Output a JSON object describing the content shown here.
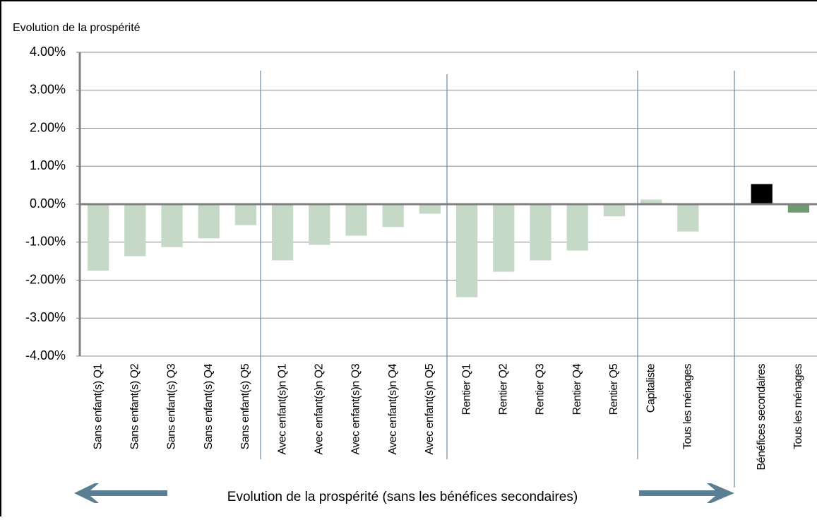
{
  "chart_data": {
    "type": "bar",
    "title": "Evolution de la prospérité",
    "annotation": "Evolution de la prospérité (sans les bénéfices secondaires)",
    "categories": [
      "Sans enfant(s) Q1",
      "Sans enfant(s) Q2",
      "Sans enfant(s) Q3",
      "Sans enfant(s) Q4",
      "Sans enfant(s) Q5",
      "Avec enfant(s)n Q1",
      "Avec enfant(s)n Q2",
      "Avec enfant(s)n Q3",
      "Avec enfant(s)n Q4",
      "Avec enfant(s)n Q5",
      "Rentier Q1",
      "Rentier Q2",
      "Rentier Q3",
      "Rentier Q4",
      "Rentier Q5",
      "Capitaliste",
      "Tous les ménages",
      null,
      "Bénéfices secondaires",
      "Tous les ménages"
    ],
    "values": [
      -1.75,
      -1.37,
      -1.13,
      -0.9,
      -0.55,
      -1.48,
      -1.07,
      -0.83,
      -0.6,
      -0.25,
      -2.45,
      -1.78,
      -1.48,
      -1.22,
      -0.32,
      0.12,
      -0.72,
      null,
      0.53,
      -0.22
    ],
    "colors": [
      "#c6d9c7",
      "#c6d9c7",
      "#c6d9c7",
      "#c6d9c7",
      "#c6d9c7",
      "#c6d9c7",
      "#c6d9c7",
      "#c6d9c7",
      "#c6d9c7",
      "#c6d9c7",
      "#c6d9c7",
      "#c6d9c7",
      "#c6d9c7",
      "#c6d9c7",
      "#c6d9c7",
      "#c6d9c7",
      "#c6d9c7",
      "#c6d9c7",
      "#000000",
      "#6f9a6f"
    ],
    "ylim": [
      -4,
      4
    ],
    "yticks": [
      {
        "value": 4,
        "label": "4.00%"
      },
      {
        "value": 3,
        "label": "3.00%"
      },
      {
        "value": 2,
        "label": "2.00%"
      },
      {
        "value": 1,
        "label": "1.00%"
      },
      {
        "value": 0,
        "label": "0.00%"
      },
      {
        "value": -1,
        "label": "-1.00%"
      },
      {
        "value": -2,
        "label": "-2.00%"
      },
      {
        "value": -3,
        "label": "-3.00%"
      },
      {
        "value": -4,
        "label": "-4.00%"
      }
    ],
    "grid": true
  }
}
